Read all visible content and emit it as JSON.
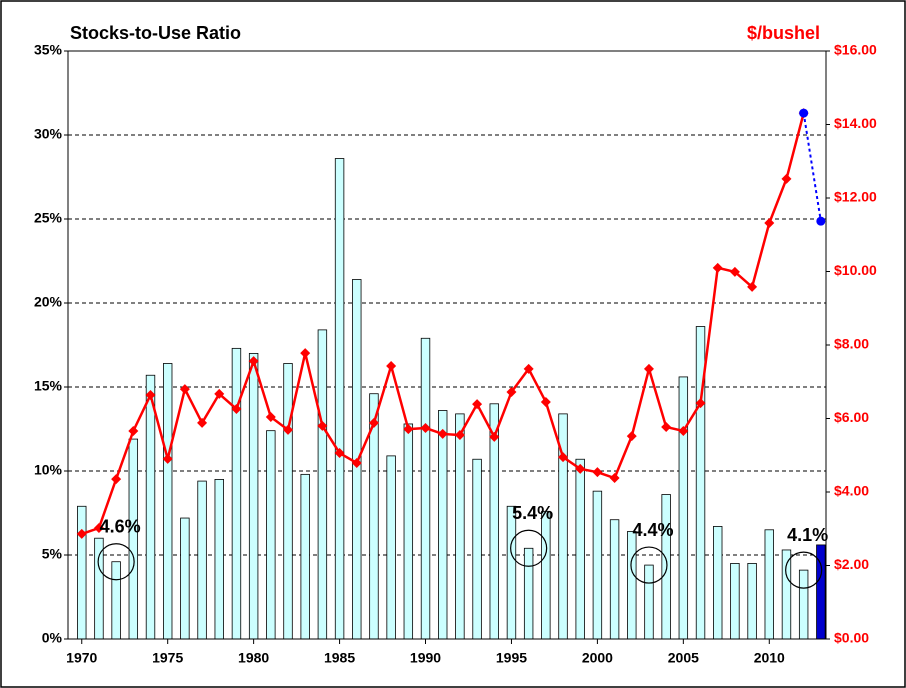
{
  "chart_data": {
    "type": "bar_line",
    "y_title": "Stocks-to-Use Ratio",
    "y2_title": "$/bushel",
    "x": [
      1970,
      1971,
      1972,
      1973,
      1974,
      1975,
      1976,
      1977,
      1978,
      1979,
      1980,
      1981,
      1982,
      1983,
      1984,
      1985,
      1986,
      1987,
      1988,
      1989,
      1990,
      1991,
      1992,
      1993,
      1994,
      1995,
      1996,
      1997,
      1998,
      1999,
      2000,
      2001,
      2002,
      2003,
      2004,
      2005,
      2006,
      2007,
      2008,
      2009,
      2010,
      2011,
      2012,
      2013
    ],
    "series": [
      {
        "type": "bar",
        "color": "#ccffff",
        "values": [
          7.9,
          6.0,
          4.6,
          11.9,
          15.7,
          16.4,
          7.2,
          9.4,
          9.5,
          17.3,
          17.0,
          12.4,
          16.4,
          9.8,
          18.4,
          28.6,
          21.4,
          14.6,
          10.9,
          12.8,
          17.9,
          13.6,
          13.4,
          10.7,
          14.0,
          7.9,
          5.4,
          7.6,
          13.4,
          10.7,
          8.8,
          7.1,
          6.4,
          4.4,
          8.6,
          15.6,
          18.6,
          6.7,
          4.5,
          4.5,
          6.5,
          5.3,
          4.1,
          null
        ]
      },
      {
        "type": "bar",
        "color": "#0000cc",
        "values": [
          null,
          null,
          null,
          null,
          null,
          null,
          null,
          null,
          null,
          null,
          null,
          null,
          null,
          null,
          null,
          null,
          null,
          null,
          null,
          null,
          null,
          null,
          null,
          null,
          null,
          null,
          null,
          null,
          null,
          null,
          null,
          null,
          null,
          null,
          null,
          null,
          null,
          null,
          null,
          null,
          null,
          null,
          null,
          5.6
        ]
      },
      {
        "type": "line",
        "axis": "y2",
        "color": "#ff0000",
        "values": [
          2.86,
          3.02,
          4.35,
          5.66,
          6.64,
          4.9,
          6.8,
          5.88,
          6.67,
          6.26,
          7.56,
          6.04,
          5.69,
          7.78,
          5.8,
          5.06,
          4.79,
          5.88,
          7.43,
          5.71,
          5.74,
          5.58,
          5.55,
          6.39,
          5.5,
          6.72,
          7.35,
          6.45,
          4.95,
          4.63,
          4.54,
          4.38,
          5.52,
          7.35,
          5.77,
          5.66,
          6.42,
          10.1,
          9.99,
          9.58,
          11.32,
          12.52,
          14.31,
          null
        ]
      },
      {
        "type": "line",
        "axis": "y2",
        "color": "#0000ff",
        "dashed": true,
        "values": [
          null,
          null,
          null,
          null,
          null,
          null,
          null,
          null,
          null,
          null,
          null,
          null,
          null,
          null,
          null,
          null,
          null,
          null,
          null,
          null,
          null,
          null,
          null,
          null,
          null,
          null,
          null,
          null,
          null,
          null,
          null,
          null,
          null,
          null,
          null,
          null,
          null,
          null,
          null,
          null,
          null,
          null,
          14.31,
          11.37
        ]
      }
    ],
    "annotations": [
      {
        "text": "4.6%",
        "x": 1972,
        "y": 4.6
      },
      {
        "text": "5.4%",
        "x": 1996,
        "y": 5.4
      },
      {
        "text": "4.4%",
        "x": 2003,
        "y": 4.4
      },
      {
        "text": "4.1%",
        "x": 2012,
        "y": 4.1
      }
    ],
    "xlim": [
      1969.2,
      2013.3
    ],
    "xticks": [
      1970,
      1975,
      1980,
      1985,
      1990,
      1995,
      2000,
      2005,
      2010
    ],
    "ylim": [
      0,
      35
    ],
    "yticks": [
      {
        "value": 0,
        "label": "0%"
      },
      {
        "value": 5,
        "label": "5%"
      },
      {
        "value": 10,
        "label": "10%"
      },
      {
        "value": 15,
        "label": "15%"
      },
      {
        "value": 20,
        "label": "20%"
      },
      {
        "value": 25,
        "label": "25%"
      },
      {
        "value": 30,
        "label": "30%"
      },
      {
        "value": 35,
        "label": "35%"
      }
    ],
    "y2lim": [
      0,
      16
    ],
    "y2ticks": [
      {
        "value": 0,
        "label": "$0.00"
      },
      {
        "value": 2,
        "label": "$2.00"
      },
      {
        "value": 4,
        "label": "$4.00"
      },
      {
        "value": 6,
        "label": "$6.00"
      },
      {
        "value": 8,
        "label": "$8.00"
      },
      {
        "value": 10,
        "label": "$10.00"
      },
      {
        "value": 12,
        "label": "$12.00"
      },
      {
        "value": 14,
        "label": "$14.00"
      },
      {
        "value": 16,
        "label": "$16.00"
      }
    ],
    "grid": true
  }
}
